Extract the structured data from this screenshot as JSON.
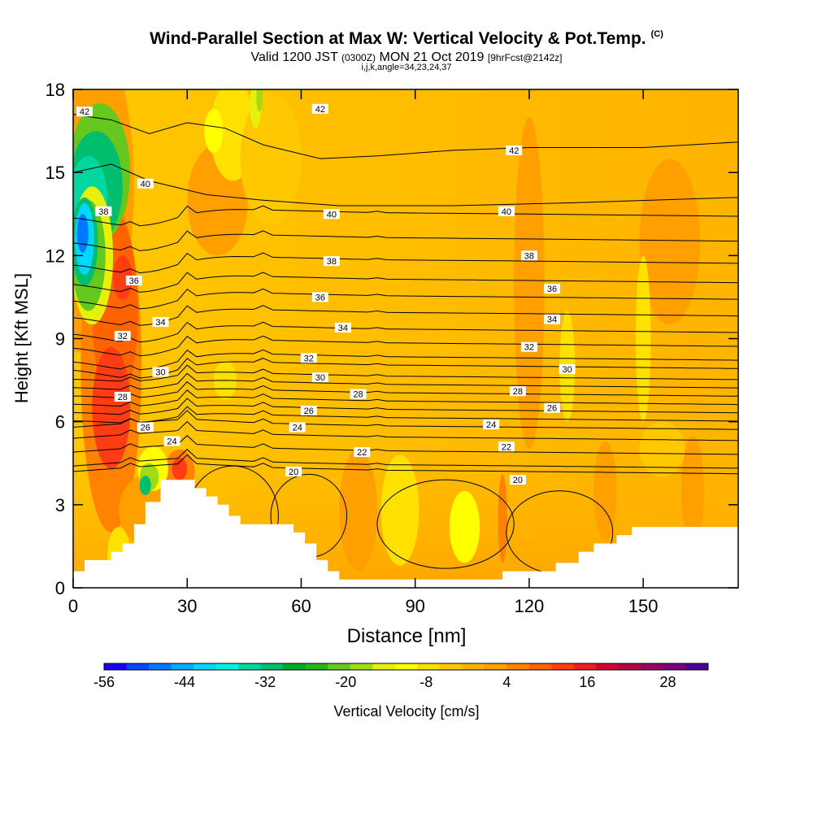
{
  "title": {
    "main": "Wind-Parallel Section at Max W: Vertical Velocity & Pot.Temp.",
    "copyright": "(C)",
    "valid_prefix": "Valid 1200 JST",
    "valid_utc": "(0300Z)",
    "valid_date": "MON 21 Oct 2019",
    "forecast": "[9hrFcst@2142z]",
    "params": "i,j,k,angle=34,23,24,37"
  },
  "chart_data": {
    "type": "heatmap",
    "xlabel": "Distance [nm]",
    "ylabel": "Height [Kft MSL]",
    "xlim": [
      0,
      175
    ],
    "ylim": [
      0,
      18
    ],
    "x_ticks": [
      0,
      30,
      60,
      90,
      120,
      150
    ],
    "y_ticks": [
      0,
      3,
      6,
      9,
      12,
      15,
      18
    ],
    "colorbar": {
      "label": "Vertical Velocity [cm/s]",
      "tick_labels": [
        "-56",
        "-44",
        "-32",
        "-20",
        "-8",
        "4",
        "16",
        "28"
      ],
      "tick_values": [
        -56,
        -44,
        -32,
        -20,
        -8,
        4,
        16,
        28
      ],
      "range": [
        -56,
        34
      ],
      "colors": [
        "#1a00f0",
        "#0046ff",
        "#0078ff",
        "#00aaff",
        "#00d7ff",
        "#00f0e6",
        "#00d7a0",
        "#00be6e",
        "#00aa28",
        "#28b41e",
        "#64c81e",
        "#a0dc14",
        "#e6f00a",
        "#ffff00",
        "#ffe100",
        "#ffc800",
        "#ffb400",
        "#ffa000",
        "#ff8200",
        "#ff6400",
        "#ff3c14",
        "#f01e1e",
        "#d20032",
        "#b40046",
        "#960064",
        "#780078",
        "#500096"
      ]
    },
    "theta_contour_labels": [
      {
        "text": "42",
        "x": 3,
        "y": 17.2
      },
      {
        "text": "42",
        "x": 65,
        "y": 17.3
      },
      {
        "text": "42",
        "x": 116,
        "y": 15.8
      },
      {
        "text": "40",
        "x": 19,
        "y": 14.6
      },
      {
        "text": "40",
        "x": 68,
        "y": 13.5
      },
      {
        "text": "40",
        "x": 114,
        "y": 13.6
      },
      {
        "text": "38",
        "x": 8,
        "y": 13.6
      },
      {
        "text": "38",
        "x": 68,
        "y": 11.8
      },
      {
        "text": "38",
        "x": 120,
        "y": 12.0
      },
      {
        "text": "36",
        "x": 16,
        "y": 11.1
      },
      {
        "text": "36",
        "x": 65,
        "y": 10.5
      },
      {
        "text": "36",
        "x": 126,
        "y": 10.8
      },
      {
        "text": "34",
        "x": 23,
        "y": 9.6
      },
      {
        "text": "34",
        "x": 71,
        "y": 9.4
      },
      {
        "text": "34",
        "x": 126,
        "y": 9.7
      },
      {
        "text": "32",
        "x": 13,
        "y": 9.1
      },
      {
        "text": "32",
        "x": 62,
        "y": 8.3
      },
      {
        "text": "32",
        "x": 120,
        "y": 8.7
      },
      {
        "text": "30",
        "x": 23,
        "y": 7.8
      },
      {
        "text": "30",
        "x": 65,
        "y": 7.6
      },
      {
        "text": "30",
        "x": 130,
        "y": 7.9
      },
      {
        "text": "28",
        "x": 13,
        "y": 6.9
      },
      {
        "text": "28",
        "x": 75,
        "y": 7.0
      },
      {
        "text": "28",
        "x": 117,
        "y": 7.1
      },
      {
        "text": "26",
        "x": 19,
        "y": 5.8
      },
      {
        "text": "26",
        "x": 62,
        "y": 6.4
      },
      {
        "text": "26",
        "x": 126,
        "y": 6.5
      },
      {
        "text": "24",
        "x": 26,
        "y": 5.3
      },
      {
        "text": "24",
        "x": 59,
        "y": 5.8
      },
      {
        "text": "24",
        "x": 110,
        "y": 5.9
      },
      {
        "text": "22",
        "x": 76,
        "y": 4.9
      },
      {
        "text": "22",
        "x": 114,
        "y": 5.1
      },
      {
        "text": "20",
        "x": 58,
        "y": 4.2
      },
      {
        "text": "20",
        "x": 117,
        "y": 3.9
      }
    ]
  }
}
